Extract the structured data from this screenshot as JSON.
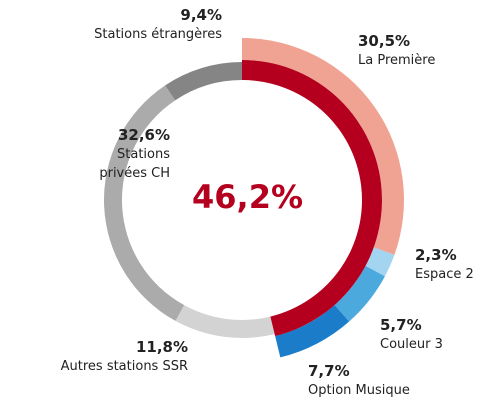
{
  "chart_data": {
    "type": "donut",
    "categories": [
      "La Première",
      "Espace 2",
      "Couleur 3",
      "Option Musique",
      "Autres stations SSR",
      "Stations privées CH",
      "Stations étrangères"
    ],
    "values": [
      30.5,
      2.3,
      5.7,
      7.7,
      11.8,
      32.6,
      9.4
    ],
    "value_labels": [
      "30,5%",
      "2,3%",
      "5,7%",
      "7,7%",
      "11,8%",
      "32,6%",
      "9,4%"
    ],
    "colors": [
      "#f0a392",
      "#a3d4f0",
      "#4ba9de",
      "#1b7dc9",
      "#d3d3d3",
      "#ababab",
      "#858585"
    ],
    "highlighted": [
      true,
      true,
      true,
      true,
      false,
      false,
      false
    ],
    "center_value": 46.2,
    "center_label": "46,2%",
    "center_color": "#b4001e"
  }
}
